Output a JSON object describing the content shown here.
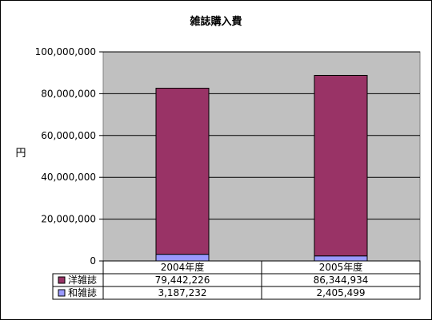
{
  "chart_data": {
    "type": "bar",
    "stacked": true,
    "title": "雑誌購入費",
    "ylabel": "円",
    "xlabel": "",
    "ylim": [
      0,
      100000000
    ],
    "yticks": [
      0,
      20000000,
      40000000,
      60000000,
      80000000,
      100000000
    ],
    "ytick_labels": [
      "0",
      "20,000,000",
      "40,000,000",
      "60,000,000",
      "80,000,000",
      "100,000,000"
    ],
    "categories": [
      "2004年度",
      "2005年度"
    ],
    "series": [
      {
        "name": "和雑誌",
        "color": "#9999ff",
        "values": [
          3187232,
          2405499
        ],
        "value_labels": [
          "3,187,232",
          "2,405,499"
        ]
      },
      {
        "name": "洋雑誌",
        "color": "#993366",
        "values": [
          79442226,
          86344934
        ],
        "value_labels": [
          "79,442,226",
          "86,344,934"
        ]
      }
    ],
    "table_row_order": [
      "洋雑誌",
      "和雑誌"
    ],
    "plot_background": "#c0c0c0",
    "grid": true,
    "legend": "data-table"
  }
}
